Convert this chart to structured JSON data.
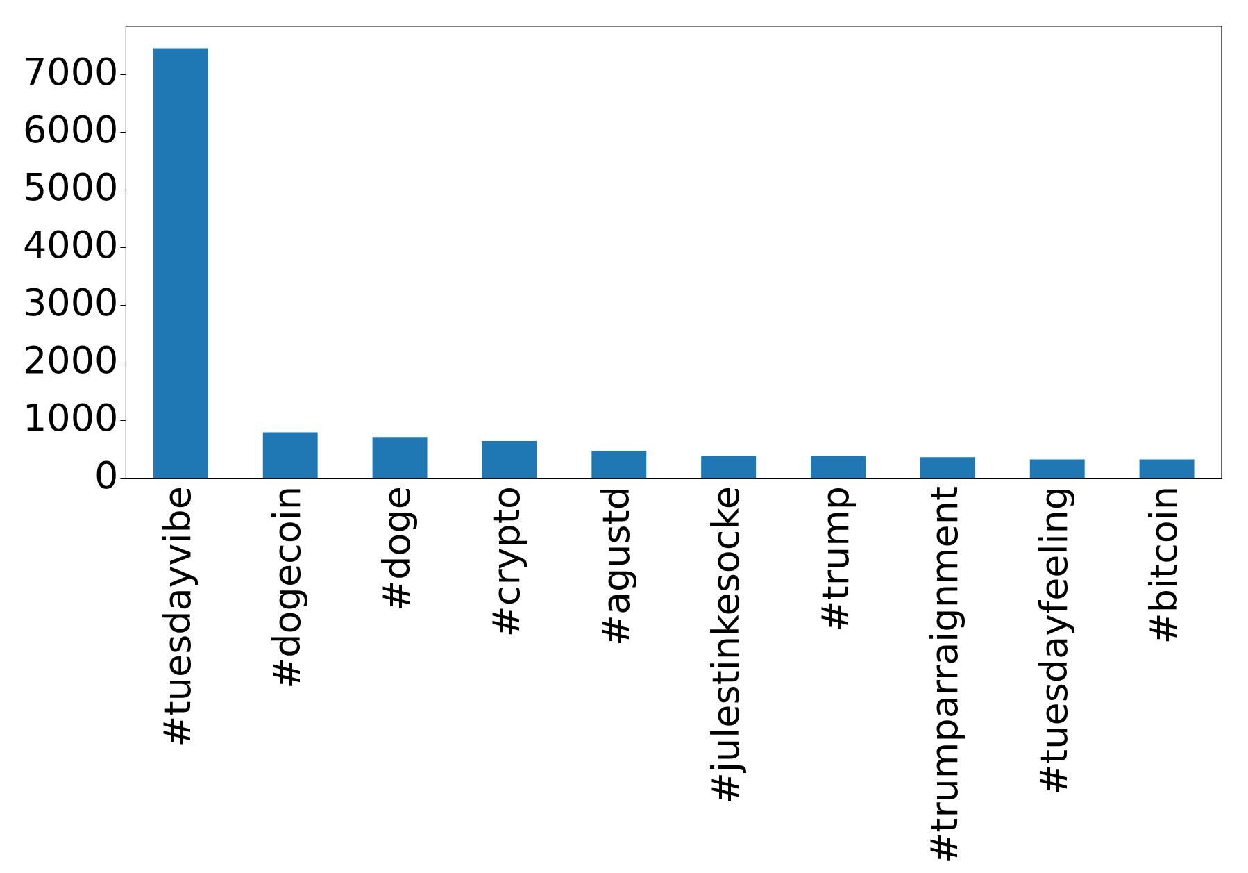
{
  "chart_data": {
    "type": "bar",
    "categories": [
      "#tuesdayvibe",
      "#dogecoin",
      "#doge",
      "#crypto",
      "#agustd",
      "#julestinkesocke",
      "#trump",
      "#trumparraignment",
      "#tuesdayfeeling",
      "#bitcoin"
    ],
    "values": [
      7460,
      800,
      720,
      650,
      480,
      390,
      390,
      370,
      330,
      330
    ],
    "color": "#1f77b4",
    "ylim": [
      0,
      7840
    ],
    "yticks": [
      0,
      1000,
      2000,
      3000,
      4000,
      5000,
      6000,
      7000
    ],
    "grid": false,
    "legend": false
  }
}
